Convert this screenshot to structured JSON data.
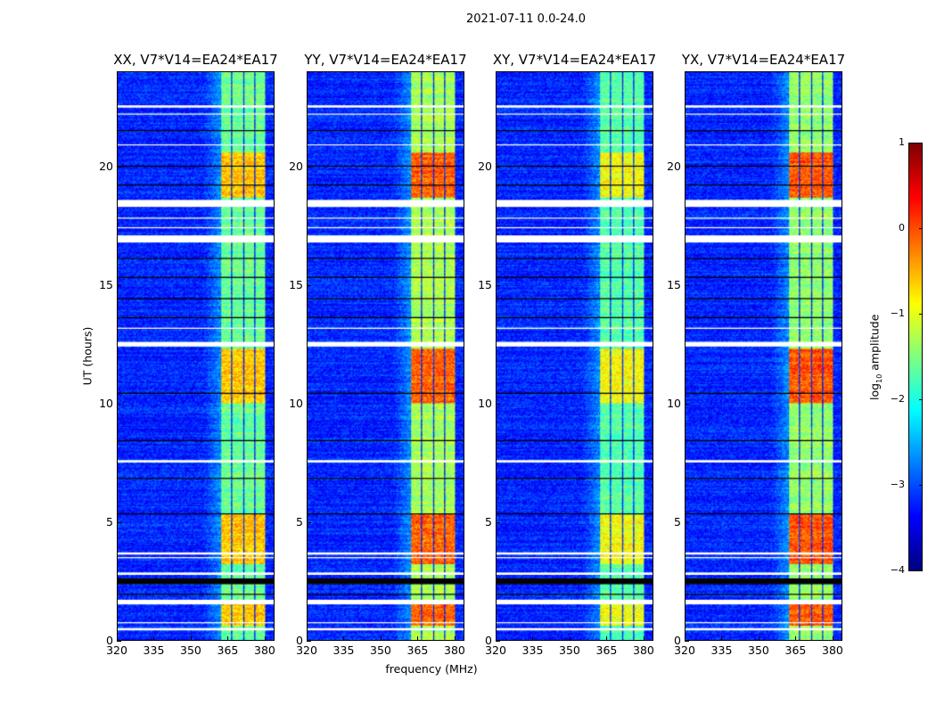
{
  "chart_data": {
    "type": "heatmap",
    "title": "2021-07-11 0.0-24.0",
    "xlabel": "frequency (MHz)",
    "ylabel": "UT (hours)",
    "xlim": [
      320,
      384
    ],
    "ylim": [
      0,
      24
    ],
    "xticks": [
      320,
      335,
      350,
      365,
      380
    ],
    "yticks": [
      0,
      5,
      10,
      15,
      20
    ],
    "colorbar": {
      "label_prefix": "log",
      "label_sub": "10",
      "label_suffix": " amplitude",
      "range": [
        -4,
        1
      ],
      "ticks": [
        1,
        0,
        -1,
        -2,
        -3,
        -4
      ],
      "tick_labels": [
        "1",
        "0",
        "−1",
        "−2",
        "−3",
        "−4"
      ],
      "colormap": "jet"
    },
    "background_level": -3.2,
    "subbands_mhz": [
      [
        362.5,
        366.5
      ],
      [
        367,
        371.3
      ],
      [
        371.8,
        375.8
      ],
      [
        376.3,
        380.5
      ]
    ],
    "bright_intervals_ut": [
      [
        0.6,
        1.5
      ],
      [
        3.2,
        5.3
      ],
      [
        10.0,
        12.3
      ],
      [
        18.7,
        20.6
      ]
    ],
    "gaps_white_ut": [
      [
        0.42,
        0.5
      ],
      [
        0.72,
        0.76
      ],
      [
        1.5,
        1.7
      ],
      [
        2.75,
        2.85
      ],
      [
        3.45,
        3.5
      ],
      [
        3.62,
        3.68
      ],
      [
        7.5,
        7.62
      ],
      [
        12.4,
        12.6
      ],
      [
        13.15,
        13.22
      ],
      [
        16.8,
        17.1
      ],
      [
        17.4,
        17.45
      ],
      [
        17.8,
        17.85
      ],
      [
        18.3,
        18.62
      ],
      [
        20.88,
        20.95
      ],
      [
        22.2,
        22.25
      ],
      [
        22.5,
        22.6
      ]
    ],
    "gaps_black_ut": [
      [
        2.35,
        2.6
      ],
      [
        1.9,
        1.95
      ],
      [
        5.3,
        5.35
      ],
      [
        6.8,
        6.85
      ],
      [
        8.4,
        8.45
      ],
      [
        10.4,
        10.45
      ],
      [
        13.6,
        13.65
      ],
      [
        14.4,
        14.45
      ],
      [
        15.3,
        15.35
      ],
      [
        16.1,
        16.15
      ],
      [
        19.2,
        19.25
      ],
      [
        20.0,
        20.05
      ],
      [
        21.5,
        21.55
      ]
    ],
    "panels": [
      {
        "title": "XX, V7*V14=EA24*EA17",
        "band_level": -1.6,
        "bright_level": -0.6
      },
      {
        "title": "YY, V7*V14=EA24*EA17",
        "band_level": -1.3,
        "bright_level": -0.1
      },
      {
        "title": "XY, V7*V14=EA24*EA17",
        "band_level": -1.7,
        "bright_level": -0.9
      },
      {
        "title": "YX, V7*V14=EA24*EA17",
        "band_level": -1.4,
        "bright_level": -0.05
      }
    ]
  }
}
